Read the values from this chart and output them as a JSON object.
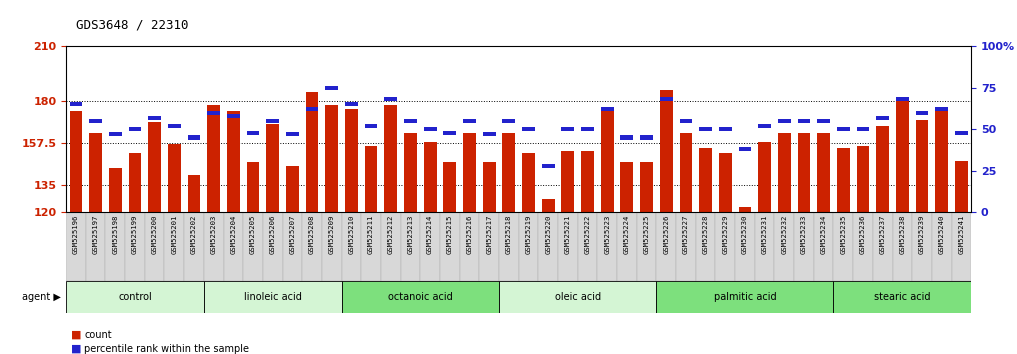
{
  "title": "GDS3648 / 22310",
  "samples": [
    "GSM525196",
    "GSM525197",
    "GSM525198",
    "GSM525199",
    "GSM525200",
    "GSM525201",
    "GSM525202",
    "GSM525203",
    "GSM525204",
    "GSM525205",
    "GSM525206",
    "GSM525207",
    "GSM525208",
    "GSM525209",
    "GSM525210",
    "GSM525211",
    "GSM525212",
    "GSM525213",
    "GSM525214",
    "GSM525215",
    "GSM525216",
    "GSM525217",
    "GSM525218",
    "GSM525219",
    "GSM525220",
    "GSM525221",
    "GSM525222",
    "GSM525223",
    "GSM525224",
    "GSM525225",
    "GSM525226",
    "GSM525227",
    "GSM525228",
    "GSM525229",
    "GSM525230",
    "GSM525231",
    "GSM525232",
    "GSM525233",
    "GSM525234",
    "GSM525235",
    "GSM525236",
    "GSM525237",
    "GSM525238",
    "GSM525239",
    "GSM525240",
    "GSM525241"
  ],
  "counts": [
    175,
    163,
    144,
    152,
    169,
    157,
    140,
    178,
    175,
    147,
    168,
    145,
    185,
    178,
    176,
    156,
    178,
    163,
    158,
    147,
    163,
    147,
    163,
    152,
    127,
    153,
    153,
    175,
    147,
    147,
    186,
    163,
    155,
    152,
    123,
    158,
    163,
    163,
    163,
    155,
    156,
    167,
    182,
    170,
    176,
    148
  ],
  "percentile_ranks": [
    65,
    55,
    47,
    50,
    57,
    52,
    45,
    60,
    58,
    48,
    55,
    47,
    62,
    75,
    65,
    52,
    68,
    55,
    50,
    48,
    55,
    47,
    55,
    50,
    28,
    50,
    50,
    62,
    45,
    45,
    68,
    55,
    50,
    50,
    38,
    52,
    55,
    55,
    55,
    50,
    50,
    57,
    68,
    60,
    62,
    48
  ],
  "groups": [
    {
      "label": "control",
      "start": 0,
      "end": 7,
      "color": "#d4f5d4"
    },
    {
      "label": "linoleic acid",
      "start": 7,
      "end": 14,
      "color": "#d4f5d4"
    },
    {
      "label": "octanoic acid",
      "start": 14,
      "end": 22,
      "color": "#7de07d"
    },
    {
      "label": "oleic acid",
      "start": 22,
      "end": 30,
      "color": "#d4f5d4"
    },
    {
      "label": "palmitic acid",
      "start": 30,
      "end": 39,
      "color": "#7de07d"
    },
    {
      "label": "stearic acid",
      "start": 39,
      "end": 46,
      "color": "#7de07d"
    }
  ],
  "ymin": 120,
  "ymax": 210,
  "yticks": [
    120,
    135,
    157.5,
    180,
    210
  ],
  "ytick_labels": [
    "120",
    "135",
    "157.5",
    "180",
    "210"
  ],
  "right_yticks": [
    0,
    25,
    50,
    75,
    100
  ],
  "right_ytick_labels": [
    "0",
    "25",
    "50",
    "75",
    "100%"
  ],
  "bar_color": "#cc2200",
  "percentile_color": "#2222cc",
  "grid_color": "#000000",
  "tick_label_color_left": "#cc2200",
  "tick_label_color_right": "#2222cc"
}
